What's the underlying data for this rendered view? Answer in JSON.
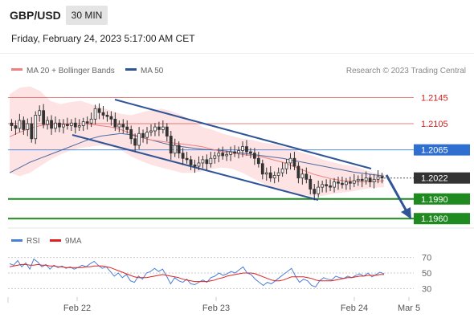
{
  "header": {
    "symbol": "GBP/USD",
    "timeframe": "30 MIN",
    "datetime": "Friday, February 24, 2023 5:17:00 AM CET"
  },
  "legend": {
    "ma20": "MA 20 + Bollinger Bands",
    "ma50": "MA 50",
    "credit": "Research © 2023 Trading Central",
    "rsi": "RSI",
    "rsi_ma": "9MA"
  },
  "colors": {
    "ma20": "#f08080",
    "ma50": "#2f5597",
    "bollinger_fill": "#fde3e3",
    "candle": "#333333",
    "resistance": "#e05555",
    "pivot": "#2f6fd0",
    "support": "#1f8a1f",
    "current": "#333333",
    "channel": "#2f5597",
    "rsi": "#4a7fd6",
    "rsi_ma": "#dd2222"
  },
  "chart_data": {
    "type": "candlestick",
    "x_labels": [
      "Feb 22",
      "Feb 23",
      "Feb 24",
      "Mar 5"
    ],
    "ylim": [
      1.1948,
      1.2175
    ],
    "levels": [
      {
        "label": "1.2145",
        "value": 1.2145,
        "kind": "resistance"
      },
      {
        "label": "1.2105",
        "value": 1.2105,
        "kind": "resistance"
      },
      {
        "label": "1.2065",
        "value": 1.2065,
        "kind": "pivot"
      },
      {
        "label": "1.2022",
        "value": 1.2022,
        "kind": "current"
      },
      {
        "label": "1.1990",
        "value": 1.199,
        "kind": "support"
      },
      {
        "label": "1.1960",
        "value": 1.196,
        "kind": "support"
      }
    ],
    "price_closes": [
      1.2102,
      1.2098,
      1.211,
      1.2096,
      1.2105,
      1.2082,
      1.2118,
      1.2125,
      1.2104,
      1.211,
      1.2098,
      1.2106,
      1.21,
      1.2104,
      1.2102,
      1.2106,
      1.21,
      1.2102,
      1.2108,
      1.2106,
      1.2112,
      1.2128,
      1.2122,
      1.2118,
      1.2116,
      1.2112,
      1.21,
      1.2104,
      1.21,
      1.2096,
      1.2082,
      1.2072,
      1.209,
      1.2084,
      1.2092,
      1.2094,
      1.21,
      1.2096,
      1.21,
      1.2086,
      1.206,
      1.2072,
      1.206,
      1.2052,
      1.205,
      1.2042,
      1.204,
      1.2045,
      1.205,
      1.2044,
      1.2052,
      1.2056,
      1.206,
      1.2056,
      1.2058,
      1.2062,
      1.206,
      1.2064,
      1.207,
      1.2062,
      1.206,
      1.2052,
      1.2044,
      1.2028,
      1.203,
      1.2022,
      1.2026,
      1.203,
      1.2036,
      1.2045,
      1.2052,
      1.204,
      1.2022,
      1.2028,
      1.202,
      1.2005,
      1.1998,
      1.2008,
      1.2012,
      1.201,
      1.2008,
      1.2016,
      1.2014,
      1.2012,
      1.2016,
      1.2014,
      1.2018,
      1.202,
      1.2018,
      1.2022,
      1.2016,
      1.202,
      1.2024,
      1.2022
    ],
    "bb_upper": [
      1.215,
      1.216,
      1.2162,
      1.2155,
      1.214,
      1.2135,
      1.2138,
      1.214,
      1.2135,
      1.213,
      1.2125,
      1.212,
      1.2118,
      1.2122,
      1.2126,
      1.2128,
      1.2124,
      1.2118,
      1.211,
      1.21,
      1.2096,
      1.209,
      1.2086,
      1.2082,
      1.208,
      1.2076,
      1.2074,
      1.207,
      1.2066,
      1.206,
      1.2056,
      1.205,
      1.2046,
      1.2042,
      1.204,
      1.2035,
      1.203,
      1.2028
    ],
    "bb_lower": [
      1.203,
      1.2025,
      1.203,
      1.204,
      1.205,
      1.2058,
      1.2064,
      1.2068,
      1.207,
      1.2072,
      1.207,
      1.2065,
      1.2055,
      1.2048,
      1.2042,
      1.2038,
      1.2034,
      1.203,
      1.203,
      1.2032,
      1.2036,
      1.2038,
      1.2036,
      1.203,
      1.2022,
      1.2014,
      1.2008,
      1.2004,
      1.2,
      1.1996,
      1.1994,
      1.1995,
      1.1998,
      1.2,
      1.2002,
      1.2005,
      1.2007,
      1.2008
    ],
    "ma20": [
      1.2085,
      1.2092,
      1.2098,
      1.2102,
      1.2104,
      1.2104,
      1.2104,
      1.2105,
      1.2104,
      1.2102,
      1.21,
      1.2096,
      1.209,
      1.2084,
      1.208,
      1.2078,
      1.2076,
      1.2074,
      1.2072,
      1.207,
      1.2066,
      1.2062,
      1.206,
      1.2058,
      1.2056,
      1.2054,
      1.205,
      1.2046,
      1.204,
      1.2034,
      1.2028,
      1.2024,
      1.202,
      1.2018,
      1.2017,
      1.2016,
      1.2017,
      1.2018
    ],
    "ma50": [
      1.203,
      1.2038,
      1.2046,
      1.2052,
      1.2058,
      1.2064,
      1.207,
      1.2076,
      1.2082,
      1.2086,
      1.2088,
      1.209,
      1.2088,
      1.2084,
      1.208,
      1.2076,
      1.2072,
      1.207,
      1.2068,
      1.2066,
      1.2065,
      1.2064,
      1.2062,
      1.206,
      1.2058,
      1.2056,
      1.2054,
      1.2052,
      1.2049,
      1.2046,
      1.2043,
      1.204,
      1.2037,
      1.2034,
      1.2031,
      1.2029,
      1.2027,
      1.2025
    ],
    "rsi": {
      "levels": [
        "70",
        "50",
        "30"
      ],
      "ylim": [
        20,
        80
      ],
      "values": [
        62,
        60,
        66,
        58,
        63,
        55,
        68,
        64,
        58,
        61,
        55,
        60,
        57,
        59,
        56,
        58,
        55,
        57,
        60,
        58,
        62,
        65,
        60,
        56,
        58,
        52,
        46,
        50,
        44,
        48,
        40,
        38,
        46,
        42,
        50,
        52,
        56,
        52,
        55,
        46,
        36,
        44,
        40,
        38,
        42,
        36,
        35,
        38,
        41,
        38,
        44,
        46,
        50,
        47,
        49,
        52,
        50,
        54,
        58,
        50,
        48,
        42,
        38,
        34,
        38,
        36,
        40,
        44,
        48,
        52,
        56,
        46,
        38,
        42,
        40,
        34,
        32,
        40,
        44,
        42,
        41,
        46,
        44,
        43,
        46,
        44,
        47,
        49,
        46,
        50,
        45,
        48,
        51,
        49
      ],
      "ma9": [
        58,
        59,
        60,
        61,
        61,
        60,
        60,
        61,
        60,
        60,
        59,
        59,
        58,
        58,
        57,
        57,
        57,
        57,
        57,
        58,
        58,
        59,
        59,
        59,
        58,
        57,
        55,
        53,
        51,
        49,
        47,
        45,
        44,
        44,
        44,
        45,
        46,
        47,
        48,
        47,
        46,
        45,
        44,
        42,
        41,
        40,
        39,
        39,
        39,
        39,
        40,
        41,
        43,
        44,
        46,
        47,
        48,
        49,
        50,
        50,
        50,
        49,
        47,
        45,
        43,
        41,
        40,
        40,
        41,
        43,
        45,
        45,
        45,
        45,
        44,
        43,
        41,
        40,
        40,
        40,
        40,
        41,
        42,
        43,
        44,
        44,
        45,
        46,
        46,
        47,
        47,
        47,
        48,
        48
      ]
    }
  }
}
